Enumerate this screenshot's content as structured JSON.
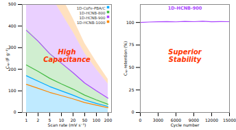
{
  "chart_data": [
    {
      "type": "area",
      "categories": [
        "1",
        "2",
        "5",
        "10",
        "20",
        "50",
        "100",
        "200"
      ],
      "series": [
        {
          "name": "1D-CoFe-PBA/C",
          "color": "#00aaff",
          "values": [
            170,
            145,
            120,
            100,
            80,
            58,
            42,
            28
          ]
        },
        {
          "name": "1D-HCNB-800",
          "color": "#44bb44",
          "values": [
            220,
            190,
            158,
            132,
            108,
            80,
            58,
            38
          ]
        },
        {
          "name": "1D-HCNB-900",
          "color": "#aa44ff",
          "values": [
            380,
            330,
            272,
            228,
            184,
            136,
            100,
            66
          ]
        },
        {
          "name": "1D-HCNB-1000",
          "color": "#ff8800",
          "values": [
            130,
            112,
            93,
            78,
            63,
            46,
            34,
            22
          ]
        }
      ],
      "x_label": "Scan rate (mV s⁻¹)",
      "y_label": "Cₛₚ (F g⁻¹)",
      "ylim": [
        0,
        500
      ],
      "yticks": [
        0,
        100,
        200,
        300,
        400,
        500
      ],
      "legend": "top-right",
      "grid": false,
      "annotations": [
        {
          "text": "High\nCapacitance",
          "color": "#ff3300"
        }
      ]
    },
    {
      "type": "line",
      "x": [
        0,
        1500,
        3000,
        4500,
        6000,
        7500,
        9000,
        10500,
        12000,
        13500,
        15000
      ],
      "values": [
        100,
        100.5,
        100.8,
        101.0,
        100.7,
        101.2,
        100.9,
        101.3,
        100.8,
        101.0,
        100.9
      ],
      "color": "#aa44ff",
      "x_label": "Cycle number",
      "y_label": "Cₛₚ retention (%)",
      "xlim": [
        0,
        15000
      ],
      "xticks": [
        0,
        3000,
        6000,
        9000,
        12000,
        15000
      ],
      "ylim": [
        0,
        120
      ],
      "yticks": [
        0,
        25,
        50,
        75,
        100
      ],
      "grid": false,
      "annotations": [
        {
          "text": "1D-HCNB-900",
          "color": "#aa44ff"
        },
        {
          "text": "Superior\nStability",
          "color": "#ff3300"
        }
      ]
    }
  ]
}
